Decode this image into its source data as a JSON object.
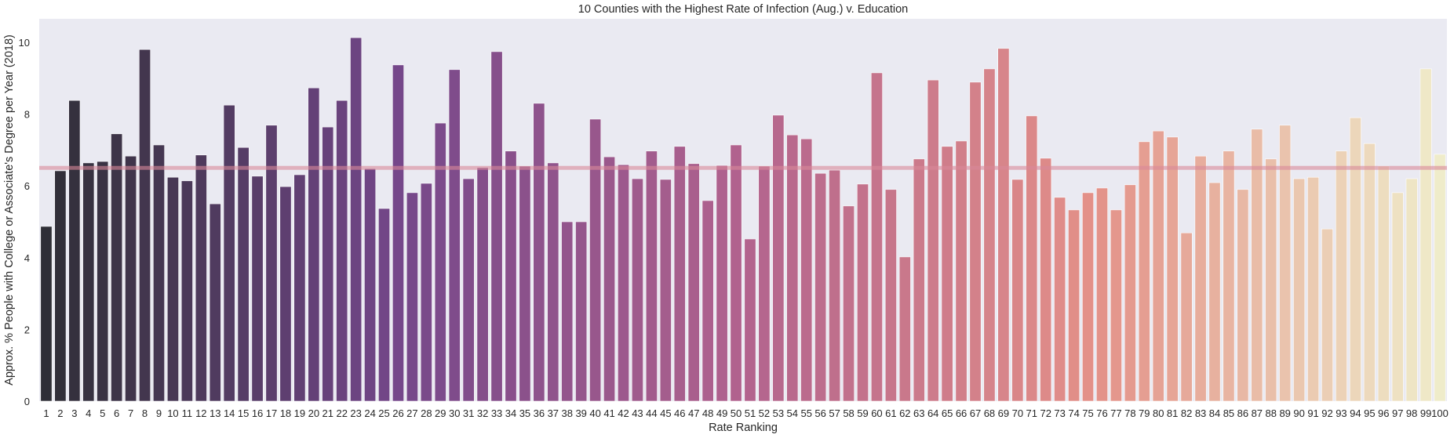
{
  "chart_data": {
    "type": "bar",
    "title": "10 Counties with the Highest Rate of Infection (Aug.) v. Education",
    "xlabel": "Rate Ranking",
    "ylabel": "Approx. % People with College or Associate's Degree per Year (2018)",
    "ylim": [
      0,
      10.6
    ],
    "yticks": [
      0,
      2,
      4,
      6,
      8,
      10
    ],
    "grid": false,
    "palette": "magma",
    "colors": {
      "background": "#eaeaf2",
      "palette_start": "#2f2f37",
      "palette_quarter": "#74478a",
      "palette_mid": "#b2638e",
      "palette_three_quarter": "#e39088",
      "palette_end": "#efecca",
      "reference_line": "#d9899a"
    },
    "reference_line": {
      "orientation": "horizontal",
      "value": 6.5
    },
    "categories": [
      "1",
      "2",
      "3",
      "4",
      "5",
      "6",
      "7",
      "8",
      "9",
      "10",
      "11",
      "12",
      "13",
      "14",
      "15",
      "16",
      "17",
      "18",
      "19",
      "20",
      "21",
      "22",
      "23",
      "24",
      "25",
      "26",
      "27",
      "28",
      "29",
      "30",
      "31",
      "32",
      "33",
      "34",
      "35",
      "36",
      "37",
      "38",
      "39",
      "40",
      "41",
      "42",
      "43",
      "44",
      "45",
      "46",
      "47",
      "48",
      "49",
      "50",
      "51",
      "52",
      "53",
      "54",
      "55",
      "56",
      "57",
      "58",
      "59",
      "60",
      "61",
      "62",
      "63",
      "64",
      "65",
      "66",
      "67",
      "68",
      "69",
      "70",
      "71",
      "72",
      "73",
      "74",
      "75",
      "76",
      "77",
      "78",
      "79",
      "80",
      "81",
      "82",
      "83",
      "84",
      "85",
      "86",
      "87",
      "88",
      "89",
      "90",
      "91",
      "92",
      "93",
      "94",
      "95",
      "96",
      "97",
      "98",
      "99",
      "100"
    ],
    "values": [
      4.87,
      6.42,
      8.38,
      6.64,
      6.68,
      7.45,
      6.83,
      9.8,
      7.14,
      6.24,
      6.14,
      6.86,
      5.5,
      8.25,
      7.07,
      6.27,
      7.69,
      5.98,
      6.31,
      8.73,
      7.64,
      8.38,
      10.13,
      6.48,
      5.37,
      9.37,
      5.81,
      6.07,
      7.75,
      9.24,
      6.2,
      6.51,
      9.74,
      6.97,
      6.55,
      8.3,
      6.64,
      5.0,
      5.0,
      7.86,
      6.81,
      6.59,
      6.2,
      6.97,
      6.18,
      7.1,
      6.62,
      5.59,
      6.57,
      7.14,
      4.52,
      6.55,
      7.97,
      7.42,
      7.31,
      6.35,
      6.44,
      5.44,
      6.05,
      9.15,
      5.9,
      4.02,
      6.75,
      8.95,
      7.1,
      7.25,
      8.89,
      9.26,
      9.83,
      6.18,
      7.95,
      6.77,
      5.68,
      5.33,
      5.81,
      5.94,
      5.33,
      6.03,
      7.23,
      7.53,
      7.36,
      4.69,
      6.83,
      6.09,
      6.97,
      5.9,
      7.58,
      6.75,
      7.69,
      6.2,
      6.24,
      4.8,
      6.97,
      7.9,
      7.18,
      6.55,
      5.81,
      6.2,
      9.26,
      6.88
    ]
  }
}
